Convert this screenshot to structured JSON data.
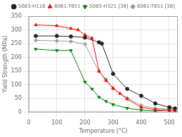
{
  "chart_data": {
    "type": "line",
    "xlabel": "Temperature (°C)",
    "ylabel": "Yield Strength (MPa)",
    "xlim": [
      0,
      530
    ],
    "ylim": [
      0,
      350
    ],
    "xticks": [
      0,
      100,
      200,
      300,
      400,
      500
    ],
    "yticks": [
      0,
      50,
      100,
      150,
      200,
      250,
      300,
      350
    ],
    "grid": true,
    "legend": "upper right",
    "series": [
      {
        "name": "5083-H116",
        "color": "#222222",
        "marker": "circle",
        "x": [
          25,
          100,
          150,
          200,
          250,
          260,
          300,
          350,
          400,
          450,
          500,
          520
        ],
        "values": [
          278,
          278,
          276,
          272,
          255,
          250,
          140,
          85,
          60,
          32,
          18,
          14
        ]
      },
      {
        "name": "6061-T651",
        "color": "red",
        "marker": "triangle",
        "x": [
          25,
          100,
          150,
          175,
          200,
          225,
          250,
          275,
          300,
          325,
          350,
          400,
          450,
          500,
          520
        ],
        "values": [
          318,
          315,
          305,
          300,
          282,
          270,
          150,
          115,
          88,
          68,
          48,
          18,
          10,
          7,
          6
        ]
      },
      {
        "name": "5083-H321 [38]",
        "color": "green",
        "marker": "triangle_down",
        "x": [
          25,
          100,
          150,
          200,
          225,
          250,
          275,
          300,
          350,
          400,
          450,
          500
        ],
        "values": [
          230,
          225,
          225,
          110,
          85,
          55,
          40,
          28,
          15,
          8,
          5,
          8
        ]
      },
      {
        "name": "6061-T651 [38]",
        "color": "#999999",
        "marker": "diamond",
        "x": [
          25,
          100,
          150,
          200,
          250,
          275,
          300,
          350,
          400,
          450,
          500,
          520
        ],
        "values": [
          262,
          260,
          258,
          248,
          148,
          120,
          85,
          52,
          25,
          14,
          12,
          10
        ]
      }
    ]
  }
}
